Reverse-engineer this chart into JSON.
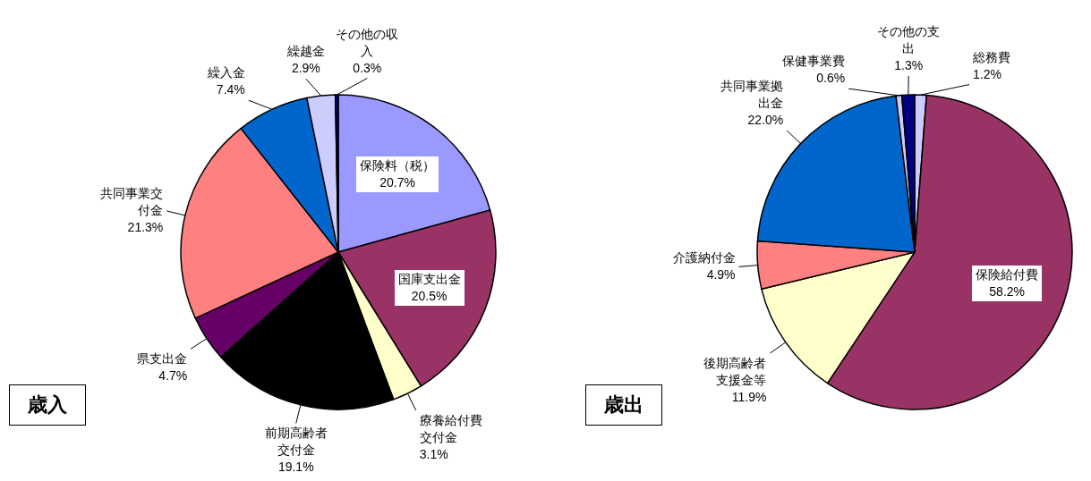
{
  "chart_data": [
    {
      "type": "pie",
      "title": "歳入",
      "categories": [
        "保険料（税）",
        "国庫支出金",
        "療養給付費交付金",
        "前期高齢者交付金",
        "県支出金",
        "共同事業交付金",
        "繰入金",
        "繰越金",
        "その他の収入"
      ],
      "values": [
        20.7,
        20.5,
        3.1,
        19.1,
        4.7,
        21.3,
        7.4,
        2.9,
        0.3
      ],
      "value_labels": [
        "20.7%",
        "20.5%",
        "3.1%",
        "19.1%",
        "4.7%",
        "21.3%",
        "7.4%",
        "2.9%",
        "0.3%"
      ],
      "colors": [
        "#9999ff",
        "#993366",
        "#ffffcc",
        "#000000",
        "#660066",
        "#ff8080",
        "#0066cc",
        "#ccccff",
        "#000080"
      ]
    },
    {
      "type": "pie",
      "title": "歳出",
      "categories": [
        "総務費",
        "保険給付費",
        "後期高齢者支援金等",
        "介護納付金",
        "共同事業拠出金",
        "保健事業費",
        "その他の支出"
      ],
      "values": [
        1.2,
        58.2,
        11.9,
        4.9,
        22.0,
        0.6,
        1.3
      ],
      "value_labels": [
        "1.2%",
        "58.2%",
        "11.9%",
        "4.9%",
        "22.0%",
        "0.6%",
        "1.3%"
      ],
      "colors": [
        "#ccccff",
        "#993366",
        "#ffffcc",
        "#ff8080",
        "#0066cc",
        "#ccccff",
        "#000080"
      ]
    }
  ]
}
